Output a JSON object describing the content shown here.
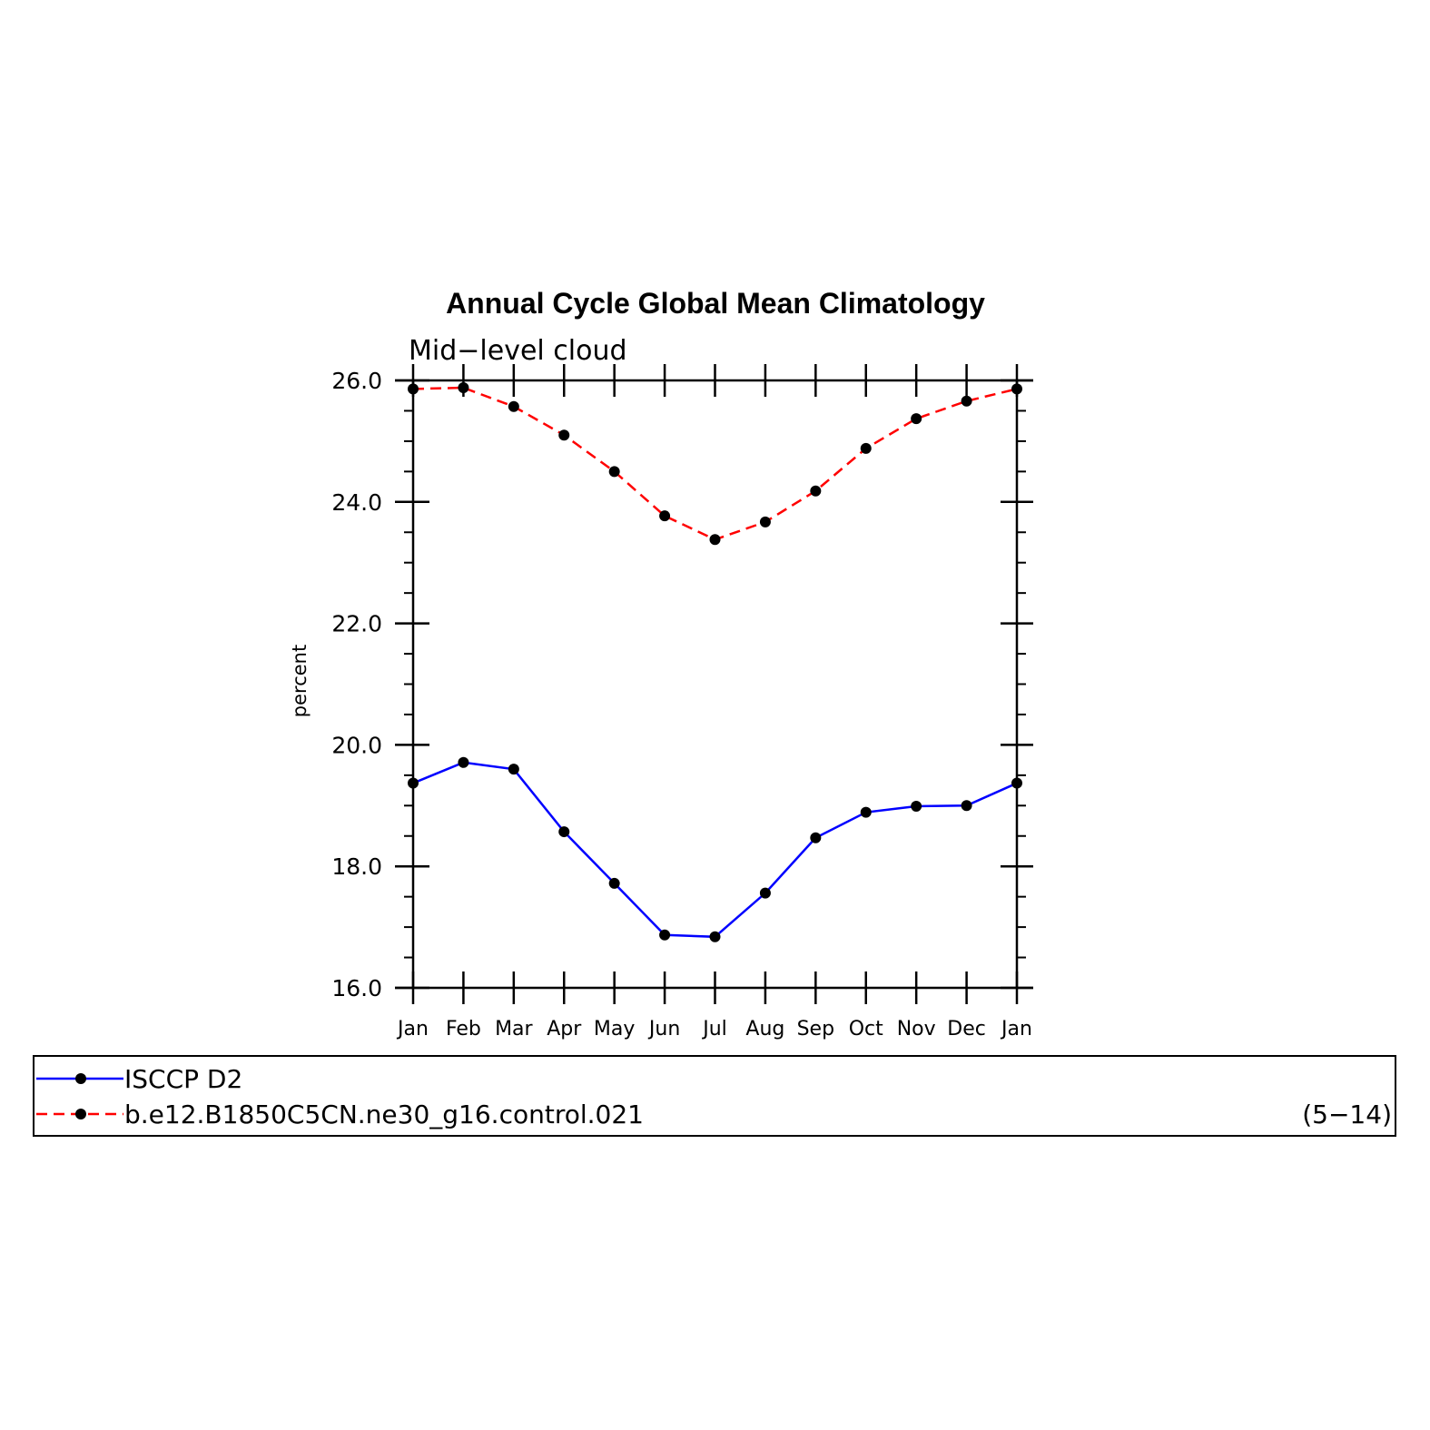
{
  "chart_data": {
    "type": "line",
    "title": "Annual Cycle Global Mean Climatology",
    "subtitle": "Mid−level cloud",
    "ylabel": "percent",
    "categories": [
      "Jan",
      "Feb",
      "Mar",
      "Apr",
      "May",
      "Jun",
      "Jul",
      "Aug",
      "Sep",
      "Oct",
      "Nov",
      "Dec",
      "Jan"
    ],
    "ylim": [
      16.0,
      26.0
    ],
    "yticks": [
      "16.0",
      "18.0",
      "20.0",
      "22.0",
      "24.0",
      "26.0"
    ],
    "series": [
      {
        "name": "ISCCP D2",
        "color": "#0000ff",
        "dash": "solid",
        "values": [
          19.37,
          19.71,
          19.6,
          18.57,
          17.72,
          16.87,
          16.84,
          17.56,
          18.47,
          18.89,
          18.99,
          19.0,
          19.37
        ]
      },
      {
        "name": "b.e12.B1850C5CN.ne30_g16.control.021",
        "color": "#ff0000",
        "dash": "dashed",
        "values": [
          25.86,
          25.88,
          25.57,
          25.1,
          24.5,
          23.77,
          23.38,
          23.67,
          24.18,
          24.88,
          25.37,
          25.66,
          25.86
        ]
      }
    ],
    "legend_note": "(5−14)",
    "grid": false,
    "legend": "bottom"
  }
}
